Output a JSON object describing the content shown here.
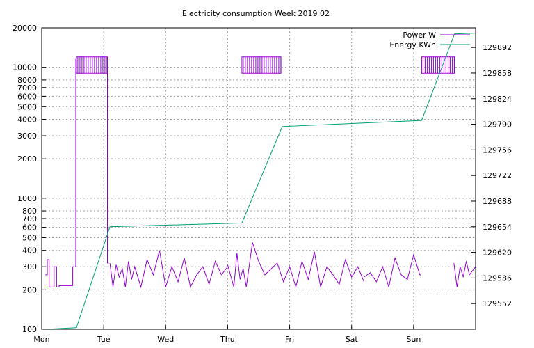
{
  "chart_data": {
    "type": "line",
    "title": "Electricity consumption Week 2019 02",
    "x_ticks": [
      "Mon",
      "Tue",
      "Wed",
      "Thu",
      "Fri",
      "Sat",
      "Sun"
    ],
    "xlim_days": [
      0,
      7
    ],
    "y_left": {
      "scale": "log",
      "ylim": [
        100,
        20000
      ],
      "ticks": [
        "100",
        "200",
        "300",
        "400",
        "500",
        "600",
        "700",
        "800",
        "1000",
        "2000",
        "3000",
        "4000",
        "5000",
        "6000",
        "7000",
        "8000",
        "10000",
        "20000"
      ]
    },
    "y_right": {
      "scale": "linear",
      "ylim": [
        129518,
        129918
      ],
      "ticks": [
        "129552",
        "129586",
        "129620",
        "129654",
        "129688",
        "129722",
        "129756",
        "129790",
        "129824",
        "129858",
        "129892"
      ]
    },
    "grid": true,
    "legend_position": "top-right",
    "series": [
      {
        "name": "Power W",
        "color": "#9400d3",
        "axis": "left",
        "segments": [
          {
            "x": [
              0.06,
              0.09,
              0.09,
              0.12,
              0.12,
              0.2,
              0.2,
              0.24,
              0.24,
              0.28,
              0.28,
              0.5,
              0.5,
              0.52
            ],
            "y": [
              260,
              260,
              340,
              340,
              210,
              210,
              300,
              300,
              210,
              210,
              215,
              215,
              300,
              300
            ]
          },
          {
            "x": [
              0.54,
              0.55,
              0.55,
              0.56
            ],
            "y": [
              300,
              300,
              11500,
              11500
            ]
          },
          {
            "x": [
              1.05,
              1.06,
              1.06,
              1.08
            ],
            "y": [
              11500,
              11500,
              320,
              320
            ]
          },
          {
            "x": [
              1.1,
              1.15,
              1.2,
              1.25,
              1.3,
              1.35,
              1.4,
              1.45,
              1.5,
              1.6,
              1.7,
              1.8,
              1.9,
              2.0,
              2.1,
              2.2,
              2.3,
              2.4,
              2.5,
              2.6,
              2.7,
              2.8,
              2.9,
              3.0
            ],
            "y": [
              320,
              210,
              310,
              250,
              290,
              210,
              330,
              240,
              300,
              210,
              340,
              260,
              400,
              210,
              300,
              230,
              350,
              210,
              260,
              300,
              220,
              330,
              260,
              300
            ]
          },
          {
            "x": [
              3.0,
              3.1,
              3.15,
              3.2,
              3.25,
              3.3,
              3.4,
              3.5,
              3.6,
              3.8,
              3.9,
              4.0,
              4.1,
              4.2,
              4.3,
              4.4,
              4.5,
              4.6,
              4.7,
              4.8,
              4.9,
              5.0,
              5.1,
              5.2
            ],
            "y": [
              310,
              210,
              380,
              240,
              290,
              210,
              460,
              330,
              260,
              320,
              230,
              300,
              210,
              330,
              240,
              390,
              210,
              300,
              260,
              220,
              340,
              250,
              300,
              230
            ]
          },
          {
            "x": [
              5.2,
              5.3,
              5.4,
              5.5,
              5.6,
              5.7,
              5.8,
              5.9,
              6.0,
              6.1,
              6.12
            ],
            "y": [
              250,
              270,
              230,
              300,
              210,
              350,
              260,
              240,
              370,
              260,
              260
            ]
          },
          {
            "x": [
              6.65,
              6.7,
              6.75,
              6.8,
              6.85,
              6.9,
              7.0
            ],
            "y": [
              320,
              210,
              300,
              250,
              330,
              260,
              300
            ]
          }
        ],
        "plateaus": [
          {
            "x_start": 0.56,
            "x_end": 1.06,
            "y_low": 9000,
            "y_high": 12000
          },
          {
            "x_start": 3.23,
            "x_end": 3.86,
            "y_low": 9000,
            "y_high": 12000
          },
          {
            "x_start": 6.13,
            "x_end": 6.66,
            "y_low": 9000,
            "y_high": 12000
          }
        ]
      },
      {
        "name": "Energy KWh",
        "color": "#009e73",
        "axis": "right",
        "x": [
          0.06,
          0.56,
          1.1,
          3.23,
          3.88,
          6.13,
          6.66,
          7.0
        ],
        "y": [
          129518,
          129520,
          129654,
          129659,
          129787,
          129795,
          129910,
          129911
        ]
      }
    ]
  }
}
